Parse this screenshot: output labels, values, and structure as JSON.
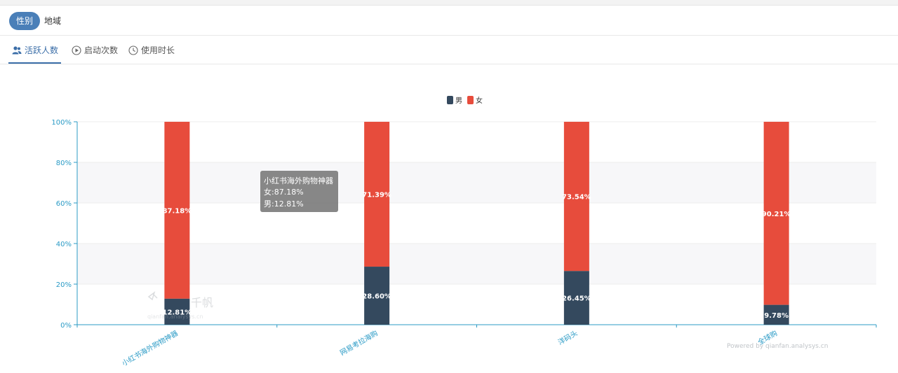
{
  "segments": [
    {
      "label": "性别",
      "active": true
    },
    {
      "label": "地域",
      "active": false
    }
  ],
  "tabs": [
    {
      "label": "活跃人数",
      "icon": "users-icon"
    },
    {
      "label": "启动次数",
      "icon": "play-circle-icon"
    },
    {
      "label": "使用时长",
      "icon": "clock-icon"
    }
  ],
  "colors": {
    "male": "#34495e",
    "female": "#e74c3c",
    "axis": "#2b9bc6",
    "accent": "#4a7fb8"
  },
  "chart_data": {
    "type": "bar",
    "stacked": true,
    "categories": [
      "小红书海外购物神器",
      "网易考拉海购",
      "洋码头",
      "全球购"
    ],
    "series": [
      {
        "name": "男",
        "values": [
          12.81,
          28.6,
          26.45,
          9.78
        ],
        "labels": [
          "12.81%",
          "28.60%",
          "26.45%",
          "9.78%"
        ]
      },
      {
        "name": "女",
        "values": [
          87.18,
          71.39,
          73.54,
          90.21
        ],
        "labels": [
          "87.18%",
          "71.39%",
          "73.54%",
          "90.21%"
        ]
      }
    ],
    "ylim": [
      0,
      100
    ],
    "yticks": [
      "0%",
      "20%",
      "40%",
      "60%",
      "80%",
      "100%"
    ],
    "legend_position": "top-center",
    "grid": true,
    "tooltip": {
      "title": "小红书海外购物神器",
      "lines": [
        "女:87.18%",
        "男:12.81%"
      ]
    }
  },
  "watermark": {
    "brand": "千帆",
    "url": "qianfan.analysys.cn",
    "powered": "Powered by qianfan.analysys.cn"
  }
}
